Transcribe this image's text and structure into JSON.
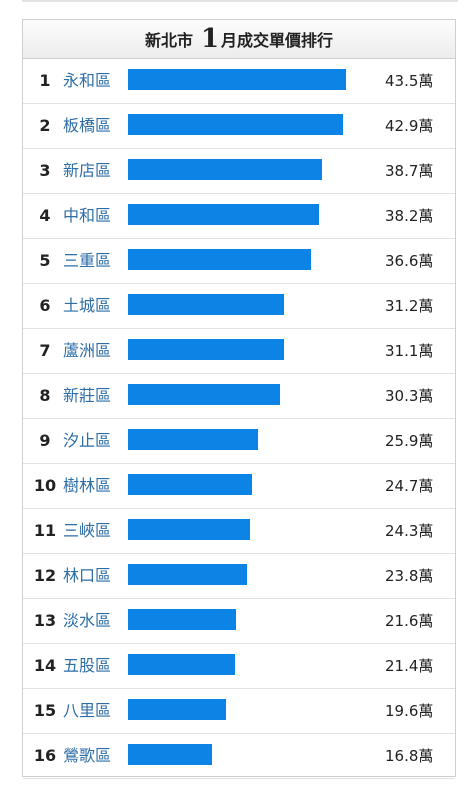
{
  "title": {
    "prefix": "新北市",
    "month_num": "1",
    "suffix": "月成交單價排行"
  },
  "unit": "萬",
  "colors": {
    "bar": "#0b84e5",
    "link": "#2d6ea7"
  },
  "chart_data": {
    "type": "bar",
    "orientation": "horizontal",
    "title": "新北市 1月成交單價排行",
    "categories": [
      "永和區",
      "板橋區",
      "新店區",
      "中和區",
      "三重區",
      "土城區",
      "蘆洲區",
      "新莊區",
      "汐止區",
      "樹林區",
      "三峽區",
      "林口區",
      "淡水區",
      "五股區",
      "八里區",
      "鶯歌區"
    ],
    "ranks": [
      "1",
      "2",
      "3",
      "4",
      "5",
      "6",
      "7",
      "8",
      "9",
      "10",
      "11",
      "12",
      "13",
      "14",
      "15",
      "16"
    ],
    "values": [
      43.5,
      42.9,
      38.7,
      38.2,
      36.6,
      31.2,
      31.1,
      30.3,
      25.9,
      24.7,
      24.3,
      23.8,
      21.6,
      21.4,
      19.6,
      16.8
    ],
    "value_labels": [
      "43.5萬",
      "42.9萬",
      "38.7萬",
      "38.2萬",
      "36.6萬",
      "31.2萬",
      "31.1萬",
      "30.3萬",
      "25.9萬",
      "24.7萬",
      "24.3萬",
      "23.8萬",
      "21.6萬",
      "21.4萬",
      "19.6萬",
      "16.8萬"
    ],
    "xlim": [
      0,
      43.5
    ],
    "grid": false,
    "legend": "none"
  }
}
